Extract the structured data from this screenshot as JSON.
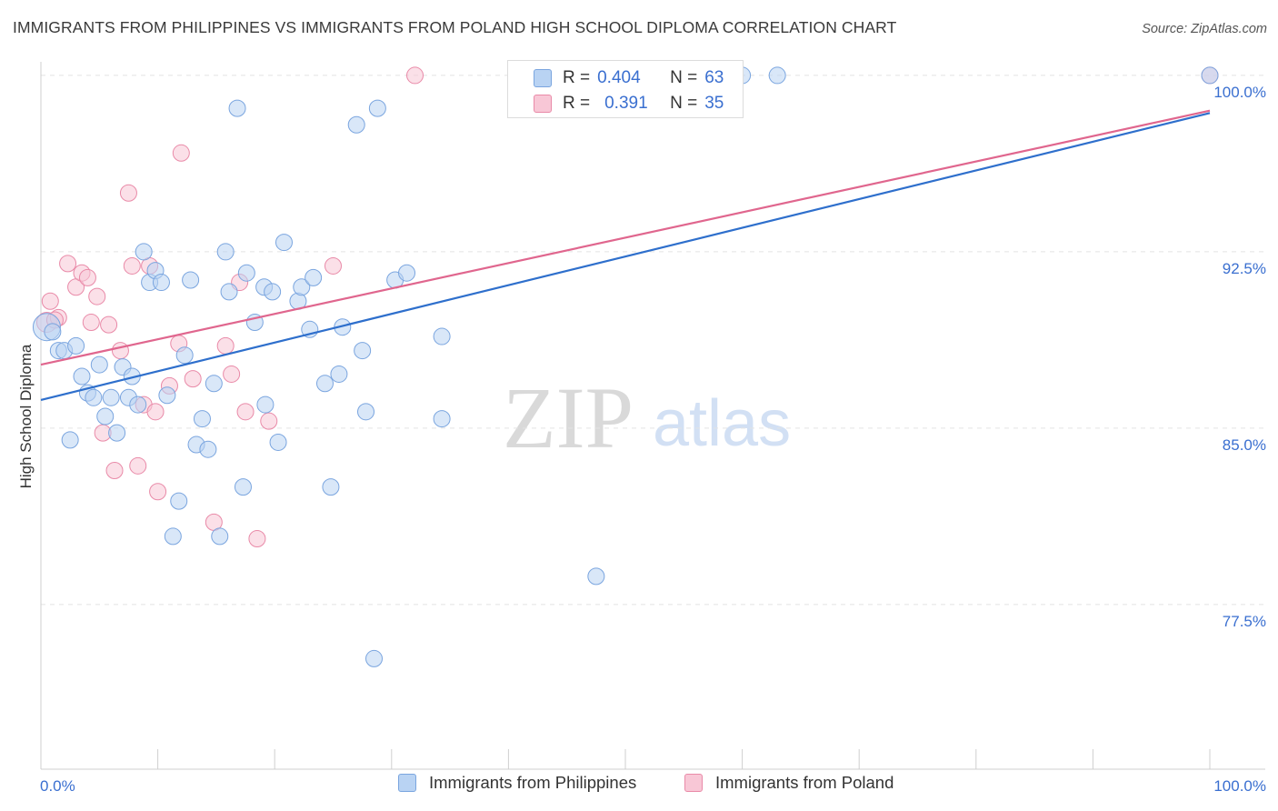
{
  "title": "IMMIGRANTS FROM PHILIPPINES VS IMMIGRANTS FROM POLAND HIGH SCHOOL DIPLOMA CORRELATION CHART",
  "source": "Source: ZipAtlas.com",
  "watermark": {
    "zip": "ZIP",
    "atlas": "atlas"
  },
  "legend": {
    "rows": [
      {
        "r_label": "R =",
        "r_value": "0.404",
        "n_label": "N =",
        "n_value": "63"
      },
      {
        "r_label": "R =",
        "r_value": "0.391",
        "n_label": "N =",
        "n_value": "35"
      }
    ]
  },
  "colors": {
    "blue_fill": "#b9d3f3",
    "blue_stroke": "#7aa5df",
    "blue_line": "#2e6fcc",
    "pink_fill": "#f8c7d6",
    "pink_stroke": "#e98aa8",
    "pink_line": "#e0668e",
    "value_text": "#3a6fd0",
    "grid": "#e3e3e3"
  },
  "chart_data": {
    "type": "scatter",
    "title": "IMMIGRANTS FROM PHILIPPINES VS IMMIGRANTS FROM POLAND HIGH SCHOOL DIPLOMA CORRELATION CHART",
    "xlabel": "",
    "ylabel": "High School Diploma",
    "xlim": [
      0,
      100
    ],
    "ylim": [
      70.5,
      100.5
    ],
    "x_tick_labels": [
      "0.0%",
      "100.0%"
    ],
    "y_ticks": [
      77.5,
      85.0,
      92.5,
      100.0
    ],
    "y_tick_labels": [
      "77.5%",
      "85.0%",
      "92.5%",
      "100.0%"
    ],
    "series": [
      {
        "name": "Immigrants from Philippines",
        "color": "#2e6fcc",
        "trend": {
          "x": [
            0,
            100
          ],
          "y": [
            86.2,
            98.4
          ]
        },
        "points": [
          {
            "x": 0.5,
            "y": 89.3,
            "size": 30
          },
          {
            "x": 1.5,
            "y": 88.3
          },
          {
            "x": 2.0,
            "y": 88.3
          },
          {
            "x": 2.5,
            "y": 84.5
          },
          {
            "x": 3.0,
            "y": 88.5
          },
          {
            "x": 3.5,
            "y": 87.2
          },
          {
            "x": 4.0,
            "y": 86.5
          },
          {
            "x": 4.5,
            "y": 86.3
          },
          {
            "x": 5.0,
            "y": 87.7
          },
          {
            "x": 5.5,
            "y": 85.5
          },
          {
            "x": 6.0,
            "y": 86.3
          },
          {
            "x": 6.5,
            "y": 84.8
          },
          {
            "x": 7.0,
            "y": 87.6
          },
          {
            "x": 7.5,
            "y": 86.3
          },
          {
            "x": 7.8,
            "y": 87.2
          },
          {
            "x": 8.3,
            "y": 86.0
          },
          {
            "x": 8.8,
            "y": 92.5
          },
          {
            "x": 9.3,
            "y": 91.2
          },
          {
            "x": 9.8,
            "y": 91.7
          },
          {
            "x": 10.3,
            "y": 91.2
          },
          {
            "x": 10.8,
            "y": 86.4
          },
          {
            "x": 11.3,
            "y": 80.4
          },
          {
            "x": 11.8,
            "y": 81.9
          },
          {
            "x": 12.3,
            "y": 88.1
          },
          {
            "x": 12.8,
            "y": 91.3
          },
          {
            "x": 13.3,
            "y": 84.3
          },
          {
            "x": 13.8,
            "y": 85.4
          },
          {
            "x": 14.3,
            "y": 84.1
          },
          {
            "x": 14.8,
            "y": 86.9
          },
          {
            "x": 15.3,
            "y": 80.4
          },
          {
            "x": 15.8,
            "y": 92.5
          },
          {
            "x": 16.1,
            "y": 90.8
          },
          {
            "x": 16.8,
            "y": 98.6
          },
          {
            "x": 17.3,
            "y": 82.5
          },
          {
            "x": 17.6,
            "y": 91.6
          },
          {
            "x": 18.3,
            "y": 89.5
          },
          {
            "x": 19.1,
            "y": 91.0
          },
          {
            "x": 19.2,
            "y": 86.0
          },
          {
            "x": 19.8,
            "y": 90.8
          },
          {
            "x": 20.3,
            "y": 84.4
          },
          {
            "x": 20.8,
            "y": 92.9
          },
          {
            "x": 22.0,
            "y": 90.4
          },
          {
            "x": 22.3,
            "y": 91.0
          },
          {
            "x": 23.0,
            "y": 89.2
          },
          {
            "x": 23.3,
            "y": 91.4
          },
          {
            "x": 24.3,
            "y": 86.9
          },
          {
            "x": 24.8,
            "y": 82.5
          },
          {
            "x": 25.5,
            "y": 87.3
          },
          {
            "x": 25.8,
            "y": 89.3
          },
          {
            "x": 27.0,
            "y": 97.9
          },
          {
            "x": 27.5,
            "y": 88.3
          },
          {
            "x": 27.8,
            "y": 85.7
          },
          {
            "x": 28.8,
            "y": 98.6
          },
          {
            "x": 28.5,
            "y": 75.2
          },
          {
            "x": 30.3,
            "y": 91.3
          },
          {
            "x": 31.3,
            "y": 91.6
          },
          {
            "x": 34.3,
            "y": 88.9
          },
          {
            "x": 34.3,
            "y": 85.4
          },
          {
            "x": 47.5,
            "y": 78.7
          },
          {
            "x": 60.0,
            "y": 100.0
          },
          {
            "x": 63.0,
            "y": 100.0
          },
          {
            "x": 100.0,
            "y": 100.0
          },
          {
            "x": 1.0,
            "y": 89.1
          }
        ]
      },
      {
        "name": "Immigrants from Poland",
        "color": "#e0668e",
        "trend": {
          "x": [
            0,
            100
          ],
          "y": [
            87.7,
            98.5
          ]
        },
        "points": [
          {
            "x": 0.5,
            "y": 89.5,
            "size": 22
          },
          {
            "x": 0.8,
            "y": 90.4
          },
          {
            "x": 1.5,
            "y": 89.7
          },
          {
            "x": 2.3,
            "y": 92.0
          },
          {
            "x": 3.0,
            "y": 91.0
          },
          {
            "x": 3.5,
            "y": 91.6
          },
          {
            "x": 4.0,
            "y": 91.4
          },
          {
            "x": 4.3,
            "y": 89.5
          },
          {
            "x": 4.8,
            "y": 90.6
          },
          {
            "x": 5.3,
            "y": 84.8
          },
          {
            "x": 5.8,
            "y": 89.4
          },
          {
            "x": 6.3,
            "y": 83.2
          },
          {
            "x": 6.8,
            "y": 88.3
          },
          {
            "x": 7.5,
            "y": 95.0
          },
          {
            "x": 7.8,
            "y": 91.9
          },
          {
            "x": 8.3,
            "y": 83.4
          },
          {
            "x": 8.8,
            "y": 86.0
          },
          {
            "x": 9.3,
            "y": 91.9
          },
          {
            "x": 9.8,
            "y": 85.7
          },
          {
            "x": 10.0,
            "y": 82.3
          },
          {
            "x": 11.0,
            "y": 86.8
          },
          {
            "x": 11.8,
            "y": 88.6
          },
          {
            "x": 12.0,
            "y": 96.7
          },
          {
            "x": 13.0,
            "y": 87.1
          },
          {
            "x": 14.8,
            "y": 81.0
          },
          {
            "x": 15.8,
            "y": 88.5
          },
          {
            "x": 16.3,
            "y": 87.3
          },
          {
            "x": 17.0,
            "y": 91.2
          },
          {
            "x": 17.5,
            "y": 85.7
          },
          {
            "x": 18.5,
            "y": 80.3
          },
          {
            "x": 19.5,
            "y": 85.3
          },
          {
            "x": 25.0,
            "y": 91.9
          },
          {
            "x": 32.0,
            "y": 100.0
          },
          {
            "x": 100.0,
            "y": 100.0
          },
          {
            "x": 1.2,
            "y": 89.6
          }
        ]
      }
    ]
  }
}
